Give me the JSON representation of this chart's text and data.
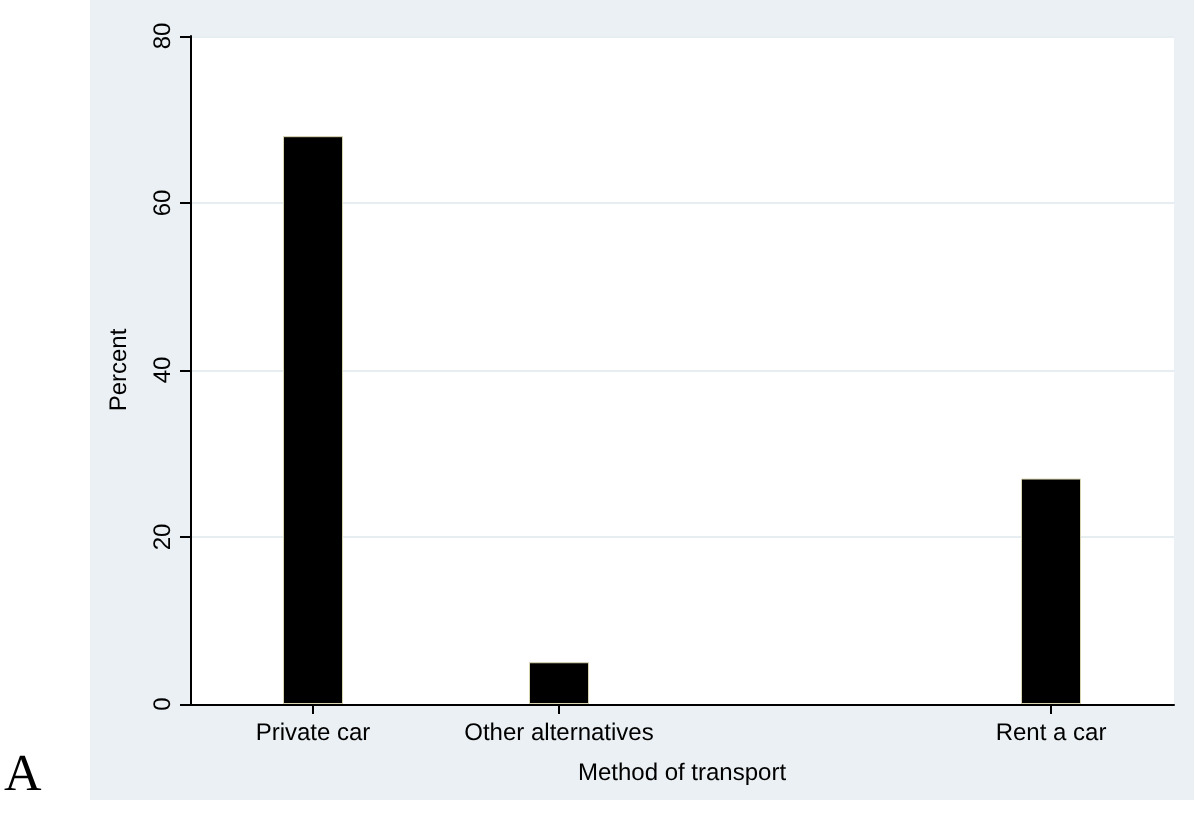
{
  "chart_data": {
    "type": "bar",
    "xlabel": "Method of transport",
    "ylabel": "Percent",
    "categories": [
      "Private car",
      "Other alternatives",
      null,
      "Rent a car"
    ],
    "values": [
      68,
      5,
      null,
      27
    ],
    "color": "#000000",
    "ylim": [
      0,
      80
    ],
    "yticks": [
      0,
      20,
      40,
      60,
      80
    ],
    "grid": "y",
    "annotations": [
      "A"
    ]
  }
}
